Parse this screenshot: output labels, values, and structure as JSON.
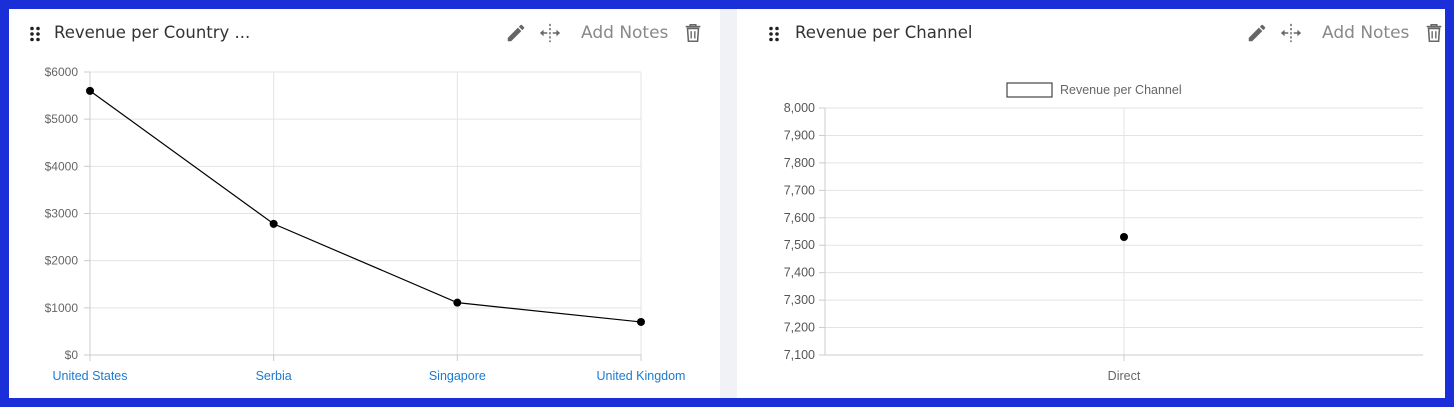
{
  "panels": [
    {
      "title": "Revenue per Country ...",
      "notes_label": "Add Notes",
      "icons": [
        "drag-handle-icon",
        "pencil-icon",
        "move-icon",
        "trash-icon"
      ]
    },
    {
      "title": "Revenue per Channel",
      "notes_label": "Add Notes",
      "icons": [
        "drag-handle-icon",
        "pencil-icon",
        "move-icon",
        "trash-icon"
      ]
    }
  ],
  "colors": {
    "frame": "#1a2fd8",
    "tick_link": "#1a7bd1",
    "grid": "#e3e3e3",
    "line": "#000000"
  },
  "chart_data": [
    {
      "type": "line",
      "title": "",
      "categories": [
        "United States",
        "Serbia",
        "Singapore",
        "United Kingdom"
      ],
      "series": [
        {
          "values": [
            5600,
            2780,
            1110,
            700
          ]
        }
      ],
      "y_ticks": [
        "$0",
        "$1000",
        "$2000",
        "$3000",
        "$4000",
        "$5000",
        "$6000"
      ],
      "ylim": [
        0,
        6000
      ],
      "grid": true,
      "legend": "none"
    },
    {
      "type": "scatter",
      "title": "",
      "categories": [
        "Direct"
      ],
      "series": [
        {
          "name": "Revenue per Channel",
          "values": [
            7530
          ]
        }
      ],
      "y_ticks": [
        "7,100",
        "7,200",
        "7,300",
        "7,400",
        "7,500",
        "7,600",
        "7,700",
        "7,800",
        "7,900",
        "8,000"
      ],
      "ylim": [
        7100,
        8000
      ],
      "grid": true,
      "legend": "top"
    }
  ]
}
